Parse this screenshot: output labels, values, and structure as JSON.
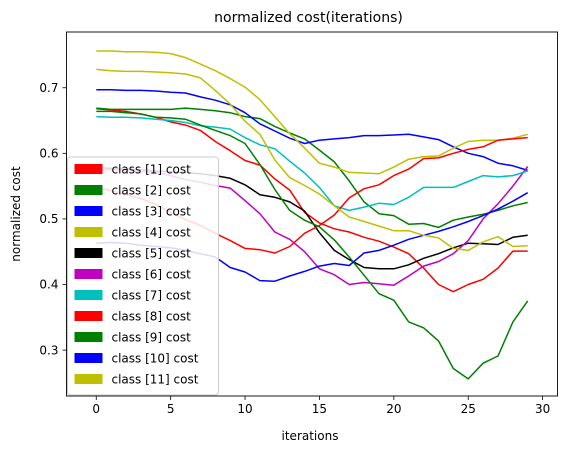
{
  "chart_data": {
    "type": "line",
    "title": "normalized cost(iterations)",
    "xlabel": "iterations",
    "ylabel": "normalized cost",
    "xlim": [
      -2,
      31
    ],
    "ylim": [
      0.23,
      0.785
    ],
    "xticks": [
      0,
      5,
      10,
      15,
      20,
      25,
      30
    ],
    "yticks": [
      0.3,
      0.4,
      0.5,
      0.6,
      0.7
    ],
    "xtick_labels": [
      "0",
      "5",
      "10",
      "15",
      "20",
      "25",
      "30"
    ],
    "ytick_labels": [
      "0.3",
      "0.4",
      "0.5",
      "0.6",
      "0.7"
    ],
    "grid": false,
    "legend_position": "lower-left",
    "x": [
      0,
      1,
      2,
      3,
      4,
      5,
      6,
      7,
      8,
      9,
      10,
      11,
      12,
      13,
      14,
      15,
      16,
      17,
      18,
      19,
      20,
      21,
      22,
      23,
      24,
      25,
      26,
      27,
      28,
      29
    ],
    "series": [
      {
        "name": "class [1] cost",
        "color": "#ff0000",
        "values": [
          0.668,
          0.666,
          0.664,
          0.66,
          0.655,
          0.648,
          0.643,
          0.635,
          0.618,
          0.604,
          0.589,
          0.582,
          0.561,
          0.544,
          0.51,
          0.494,
          0.485,
          0.48,
          0.472,
          0.466,
          0.457,
          0.447,
          0.425,
          0.4,
          0.389,
          0.4,
          0.408,
          0.425,
          0.451,
          0.451
        ]
      },
      {
        "name": "class [2] cost",
        "color": "#008000",
        "values": [
          0.669,
          0.667,
          0.667,
          0.667,
          0.667,
          0.667,
          0.669,
          0.667,
          0.665,
          0.662,
          0.656,
          0.653,
          0.641,
          0.631,
          0.622,
          0.605,
          0.587,
          0.558,
          0.526,
          0.508,
          0.505,
          0.492,
          0.493,
          0.487,
          0.498,
          0.503,
          0.507,
          0.513,
          0.52,
          0.525
        ]
      },
      {
        "name": "class [3] cost",
        "color": "#0000ff",
        "values": [
          0.697,
          0.697,
          0.696,
          0.696,
          0.695,
          0.693,
          0.692,
          0.686,
          0.681,
          0.674,
          0.662,
          0.645,
          0.634,
          0.623,
          0.615,
          0.62,
          0.622,
          0.624,
          0.627,
          0.627,
          0.628,
          0.629,
          0.625,
          0.621,
          0.61,
          0.6,
          0.595,
          0.585,
          0.581,
          0.574
        ]
      },
      {
        "name": "class [4] cost",
        "color": "#bfbf00",
        "values": [
          0.756,
          0.756,
          0.755,
          0.755,
          0.754,
          0.752,
          0.746,
          0.736,
          0.726,
          0.714,
          0.701,
          0.682,
          0.656,
          0.63,
          0.608,
          0.585,
          0.579,
          0.571,
          0.57,
          0.569,
          0.579,
          0.591,
          0.595,
          0.596,
          0.608,
          0.618,
          0.62,
          0.62,
          0.623,
          0.629
        ]
      },
      {
        "name": "class [5] cost",
        "color": "#000000",
        "values": [
          0.578,
          0.577,
          0.576,
          0.575,
          0.573,
          0.572,
          0.571,
          0.569,
          0.566,
          0.562,
          0.552,
          0.537,
          0.533,
          0.526,
          0.512,
          0.479,
          0.452,
          0.438,
          0.426,
          0.424,
          0.424,
          0.43,
          0.44,
          0.447,
          0.456,
          0.463,
          0.462,
          0.461,
          0.472,
          0.475
        ]
      },
      {
        "name": "class [6] cost",
        "color": "#bf00bf",
        "values": [
          0.574,
          0.575,
          0.574,
          0.572,
          0.571,
          0.566,
          0.56,
          0.556,
          0.551,
          0.547,
          0.528,
          0.508,
          0.48,
          0.469,
          0.45,
          0.424,
          0.415,
          0.4,
          0.403,
          0.401,
          0.399,
          0.413,
          0.428,
          0.435,
          0.447,
          0.467,
          0.5,
          0.523,
          0.55,
          0.58
        ]
      },
      {
        "name": "class [7] cost",
        "color": "#00bfbf",
        "values": [
          0.656,
          0.655,
          0.655,
          0.654,
          0.652,
          0.65,
          0.647,
          0.642,
          0.64,
          0.637,
          0.624,
          0.613,
          0.607,
          0.588,
          0.57,
          0.548,
          0.52,
          0.513,
          0.518,
          0.524,
          0.522,
          0.533,
          0.548,
          0.548,
          0.548,
          0.557,
          0.566,
          0.564,
          0.566,
          0.573
        ]
      },
      {
        "name": "class [8] cost",
        "color": "#ff0000",
        "values": [
          0.548,
          0.543,
          0.537,
          0.531,
          0.522,
          0.51,
          0.499,
          0.49,
          0.478,
          0.467,
          0.455,
          0.453,
          0.448,
          0.458,
          0.478,
          0.49,
          0.506,
          0.532,
          0.546,
          0.552,
          0.566,
          0.576,
          0.592,
          0.593,
          0.6,
          0.606,
          0.61,
          0.62,
          0.622,
          0.624
        ]
      },
      {
        "name": "class [9] cost",
        "color": "#008000",
        "values": [
          0.664,
          0.664,
          0.662,
          0.66,
          0.655,
          0.654,
          0.652,
          0.643,
          0.635,
          0.627,
          0.615,
          0.583,
          0.545,
          0.513,
          0.498,
          0.488,
          0.468,
          0.442,
          0.414,
          0.386,
          0.376,
          0.343,
          0.334,
          0.314,
          0.272,
          0.256,
          0.28,
          0.291,
          0.343,
          0.375
        ]
      },
      {
        "name": "class [10] cost",
        "color": "#0000ff",
        "values": [
          0.463,
          0.464,
          0.463,
          0.46,
          0.458,
          0.456,
          0.452,
          0.447,
          0.442,
          0.426,
          0.419,
          0.406,
          0.405,
          0.413,
          0.42,
          0.428,
          0.432,
          0.429,
          0.448,
          0.452,
          0.46,
          0.469,
          0.475,
          0.481,
          0.488,
          0.496,
          0.505,
          0.515,
          0.527,
          0.54
        ]
      },
      {
        "name": "class [11] cost",
        "color": "#bfbf00",
        "values": [
          0.728,
          0.726,
          0.725,
          0.725,
          0.724,
          0.723,
          0.721,
          0.715,
          0.696,
          0.675,
          0.649,
          0.629,
          0.59,
          0.563,
          0.551,
          0.538,
          0.52,
          0.503,
          0.496,
          0.489,
          0.482,
          0.482,
          0.475,
          0.471,
          0.455,
          0.452,
          0.465,
          0.473,
          0.458,
          0.459
        ]
      }
    ]
  }
}
